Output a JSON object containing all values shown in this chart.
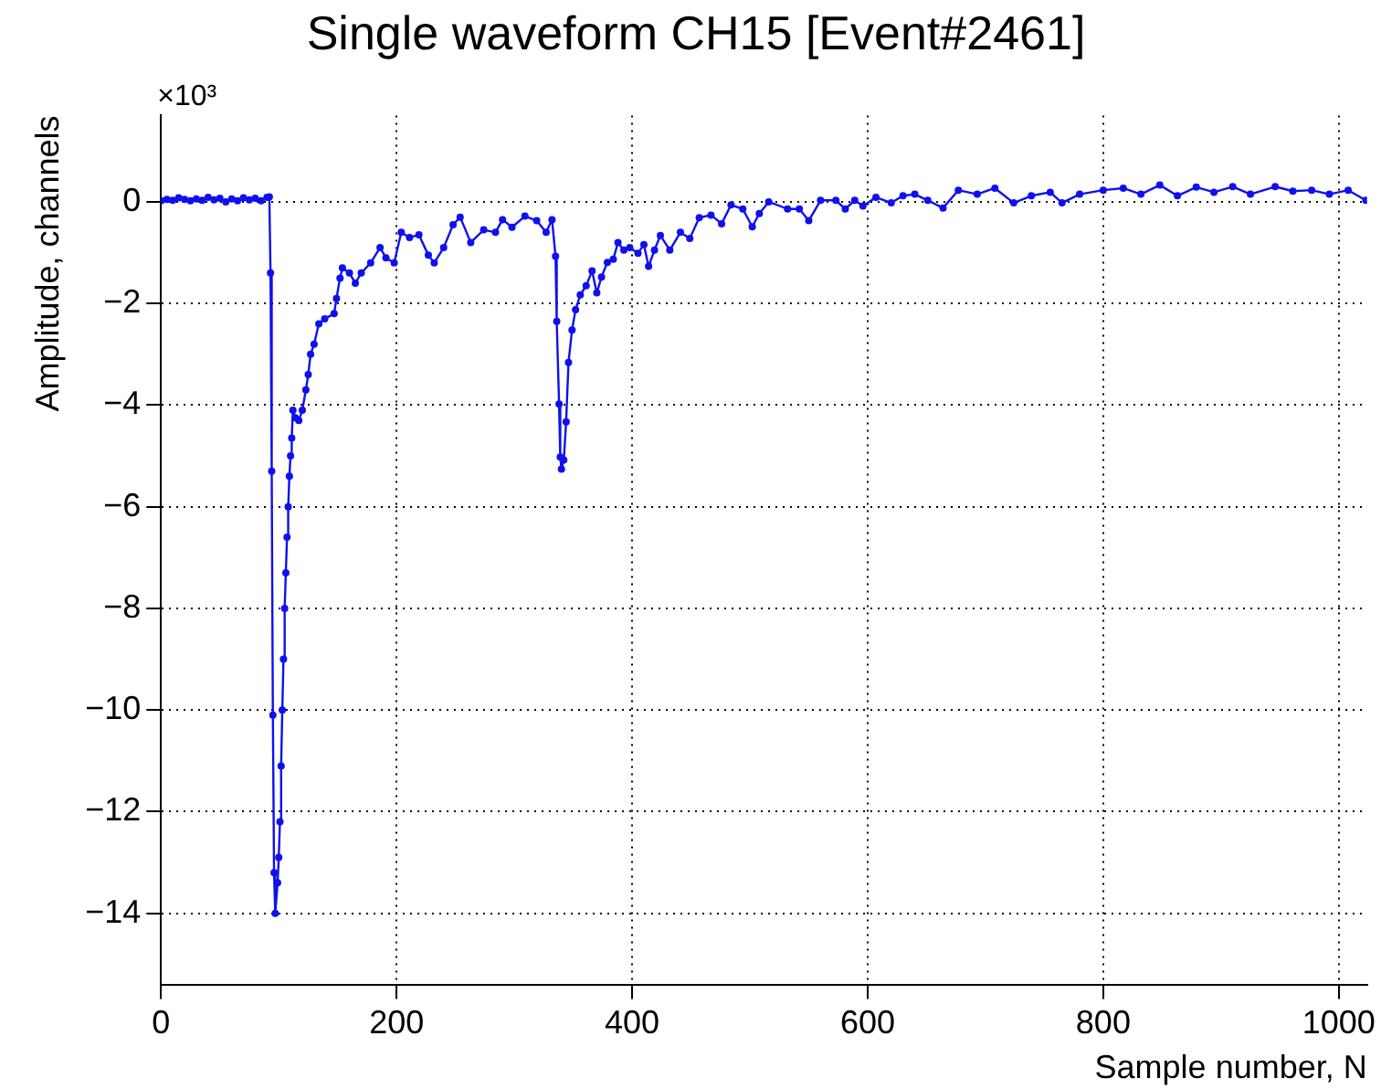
{
  "chart_data": {
    "type": "line",
    "title": "Single waveform CH15 [Event#2461]",
    "xlabel": "Sample number, N",
    "ylabel": "Amplitude, channels",
    "annotations": [
      "×10³"
    ],
    "xlim": [
      0,
      1024
    ],
    "xticks": [
      0,
      200,
      400,
      600,
      800,
      1000
    ],
    "ylim": [
      -15.4,
      1.7
    ],
    "yticks": [
      -14,
      -12,
      -10,
      -8,
      -6,
      -4,
      -2,
      0
    ],
    "grid": true,
    "marker": "circle",
    "line_style": "solid",
    "legend": false,
    "series": [
      {
        "color": "#1010ee",
        "x": [
          0,
          5,
          10,
          15,
          20,
          25,
          30,
          35,
          40,
          45,
          50,
          55,
          60,
          65,
          70,
          75,
          80,
          85,
          90,
          92,
          93,
          94,
          95,
          96,
          97,
          99,
          100,
          101,
          102,
          103,
          104,
          105,
          106,
          107,
          108,
          109,
          110,
          111,
          112,
          114,
          117,
          120,
          123,
          125,
          127,
          130,
          134,
          139,
          147,
          149,
          152,
          154,
          160,
          165,
          170,
          178,
          186,
          191,
          198,
          204,
          211,
          219,
          227,
          232,
          240,
          248,
          254,
          263,
          274,
          284,
          290,
          298,
          309,
          319,
          327,
          332,
          335,
          336,
          338,
          339,
          340,
          342,
          344,
          346,
          349,
          352,
          356,
          361,
          366,
          370,
          374,
          379,
          384,
          388,
          393,
          398,
          405,
          410,
          414,
          419,
          424,
          432,
          441,
          449,
          457,
          467,
          476,
          484,
          494,
          502,
          508,
          516,
          532,
          542,
          550,
          560,
          573,
          581,
          589,
          596,
          607,
          620,
          630,
          640,
          651,
          664,
          677,
          693,
          708,
          724,
          739,
          755,
          765,
          780,
          800,
          817,
          832,
          848,
          863,
          879,
          894,
          910,
          925,
          946,
          961,
          977,
          992,
          1008,
          1023
        ],
        "values": [
          0.02,
          0.05,
          0.03,
          0.08,
          0.05,
          0.02,
          0.06,
          0.03,
          0.09,
          0.04,
          0.07,
          0.0,
          0.06,
          0.02,
          0.08,
          0.04,
          0.07,
          0.02,
          0.09,
          0.1,
          -1.4,
          -5.3,
          -10.1,
          -13.2,
          -14.0,
          -13.4,
          -12.9,
          -12.2,
          -11.1,
          -10.0,
          -9.0,
          -8.0,
          -7.3,
          -6.6,
          -6.0,
          -5.4,
          -5.0,
          -4.65,
          -4.1,
          -4.25,
          -4.3,
          -4.1,
          -3.7,
          -3.4,
          -3.0,
          -2.8,
          -2.4,
          -2.3,
          -2.2,
          -1.9,
          -1.5,
          -1.3,
          -1.4,
          -1.6,
          -1.4,
          -1.2,
          -0.9,
          -1.1,
          -1.2,
          -0.6,
          -0.7,
          -0.65,
          -1.05,
          -1.2,
          -0.9,
          -0.45,
          -0.3,
          -0.8,
          -0.55,
          -0.6,
          -0.35,
          -0.5,
          -0.28,
          -0.37,
          -0.6,
          -0.35,
          -1.07,
          -2.35,
          -3.98,
          -5.02,
          -5.26,
          -5.08,
          -4.33,
          -3.16,
          -2.52,
          -2.12,
          -1.83,
          -1.65,
          -1.36,
          -1.79,
          -1.48,
          -1.19,
          -1.13,
          -0.8,
          -0.95,
          -0.9,
          -1.01,
          -0.84,
          -1.27,
          -0.95,
          -0.66,
          -0.95,
          -0.6,
          -0.72,
          -0.31,
          -0.26,
          -0.43,
          -0.06,
          -0.14,
          -0.49,
          -0.23,
          0.0,
          -0.14,
          -0.14,
          -0.37,
          0.03,
          0.03,
          -0.14,
          0.03,
          -0.08,
          0.09,
          -0.02,
          0.12,
          0.15,
          0.03,
          -0.12,
          0.23,
          0.15,
          0.27,
          -0.02,
          0.12,
          0.19,
          -0.02,
          0.15,
          0.23,
          0.27,
          0.15,
          0.33,
          0.12,
          0.29,
          0.19,
          0.3,
          0.15,
          0.3,
          0.21,
          0.23,
          0.15,
          0.23,
          0.03
        ]
      }
    ]
  }
}
